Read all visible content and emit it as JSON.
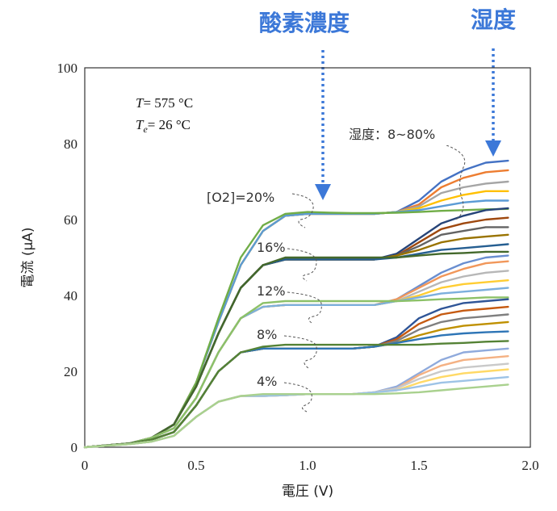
{
  "chart_data": {
    "type": "line",
    "xlabel": "電圧 (V)",
    "ylabel": "電流 (μA)",
    "xlim": [
      0,
      2.0
    ],
    "ylim": [
      0,
      100
    ],
    "xticks": [
      "0",
      "0.5",
      "1.0",
      "1.5",
      "2.0"
    ],
    "yticks": [
      "0",
      "20",
      "40",
      "60",
      "80",
      "100"
    ],
    "conditions": {
      "temp_var": "T",
      "temp_value": "= 575 °C",
      "te_var": "T",
      "te_sub": "e",
      "te_value": "= 26 °C"
    },
    "headers": {
      "oxygen": "酸素濃度",
      "humidity": "湿度"
    },
    "annotations": {
      "humidity_range": "湿度：8~80%",
      "o2_20": "[O2]=20%",
      "o2_16": "16%",
      "o2_12": "12%",
      "o2_8": "8%",
      "o2_4": "4%"
    },
    "x": [
      0,
      0.1,
      0.2,
      0.3,
      0.4,
      0.5,
      0.6,
      0.7,
      0.8,
      0.9,
      1.0,
      1.1,
      1.2,
      1.3,
      1.4,
      1.5,
      1.6,
      1.7,
      1.8,
      1.9
    ],
    "groups": [
      {
        "oxygen": "20%",
        "colors": [
          "#4472c4",
          "#ed7d31",
          "#a5a5a5",
          "#ffc000",
          "#5b9bd5",
          "#70ad47"
        ],
        "series": [
          {
            "values": [
              0,
              0.5,
              1,
              2.5,
              6,
              17,
              33,
              48,
              57,
              61,
              61.5,
              61.5,
              61.5,
              61.5,
              62,
              65,
              70,
              73,
              75,
              75.5
            ]
          },
          {
            "values": [
              0,
              0.5,
              1,
              2.5,
              6,
              17,
              33,
              48,
              57,
              61,
              61.5,
              61.5,
              61.5,
              61.5,
              62,
              64,
              68.5,
              71,
              72.5,
              73
            ]
          },
          {
            "values": [
              0,
              0.5,
              1,
              2.5,
              6,
              17,
              33,
              48,
              57,
              61,
              61.5,
              61.5,
              61.5,
              61.5,
              62,
              63.5,
              67,
              68.5,
              69.5,
              70
            ]
          },
          {
            "values": [
              0,
              0.5,
              1,
              2.5,
              6,
              17,
              33,
              48,
              57,
              61,
              61.5,
              61.5,
              61.5,
              61.5,
              62,
              63,
              65,
              66.5,
              67.5,
              67.5
            ]
          },
          {
            "values": [
              0,
              0.5,
              1,
              2.5,
              6,
              17,
              33,
              48,
              57,
              61,
              61.5,
              61.5,
              61.5,
              61.5,
              62,
              62.5,
              63.5,
              64.5,
              65,
              65
            ]
          },
          {
            "values": [
              0,
              0.5,
              1,
              2.5,
              6,
              17,
              34,
              50,
              58.5,
              61.5,
              62,
              61.8,
              61.7,
              61.7,
              61.8,
              62,
              62.3,
              62.5,
              62.7,
              62.8
            ]
          }
        ]
      },
      {
        "oxygen": "16%",
        "colors": [
          "#264478",
          "#9e480e",
          "#636363",
          "#997300",
          "#255e91",
          "#43682b"
        ],
        "series": [
          {
            "values": [
              0,
              0.5,
              1,
              2.5,
              6,
              16,
              30,
              42,
              48,
              49.5,
              49.5,
              49.5,
              49.5,
              49.5,
              51,
              55,
              59,
              61,
              62.5,
              63
            ]
          },
          {
            "values": [
              0,
              0.5,
              1,
              2.5,
              6,
              16,
              30,
              42,
              48,
              49.5,
              49.5,
              49.5,
              49.5,
              49.5,
              50.5,
              54,
              57.5,
              59,
              60,
              60.5
            ]
          },
          {
            "values": [
              0,
              0.5,
              1,
              2.5,
              6,
              16,
              30,
              42,
              48,
              49.5,
              49.5,
              49.5,
              49.5,
              49.5,
              50.5,
              53,
              56,
              57,
              58,
              58
            ]
          },
          {
            "values": [
              0,
              0.5,
              1,
              2.5,
              6,
              16,
              30,
              42,
              48,
              49.5,
              49.5,
              49.5,
              49.5,
              49.5,
              50.5,
              52,
              54,
              55,
              55.5,
              56
            ]
          },
          {
            "values": [
              0,
              0.5,
              1,
              2.5,
              6,
              16,
              30,
              42,
              48,
              49.5,
              49.5,
              49.5,
              49.5,
              49.5,
              50,
              51,
              52,
              52.5,
              53,
              53.5
            ]
          },
          {
            "values": [
              0,
              0.5,
              1,
              2.5,
              6,
              16,
              30,
              42,
              48,
              50,
              50,
              50,
              50,
              50,
              50,
              50.5,
              51,
              51.2,
              51.5,
              51.5
            ]
          }
        ]
      },
      {
        "oxygen": "12%",
        "colors": [
          "#698ed0",
          "#f1975a",
          "#b7b7b7",
          "#ffcd33",
          "#7cafdd",
          "#8cc168"
        ],
        "series": [
          {
            "values": [
              0,
              0.5,
              1,
              2.5,
              5,
              13,
              25,
              34,
              37,
              37.5,
              37.5,
              37.5,
              37.5,
              37.5,
              39,
              42.5,
              46,
              48.5,
              50,
              50.5
            ]
          },
          {
            "values": [
              0,
              0.5,
              1,
              2.5,
              5,
              13,
              25,
              34,
              37,
              37.5,
              37.5,
              37.5,
              37.5,
              37.5,
              39,
              42,
              45,
              47,
              48.5,
              49
            ]
          },
          {
            "values": [
              0,
              0.5,
              1,
              2.5,
              5,
              13,
              25,
              34,
              37,
              37.5,
              37.5,
              37.5,
              37.5,
              37.5,
              38.5,
              41,
              43.5,
              45,
              46,
              46.5
            ]
          },
          {
            "values": [
              0,
              0.5,
              1,
              2.5,
              5,
              13,
              25,
              34,
              37,
              37.5,
              37.5,
              37.5,
              37.5,
              37.5,
              38.5,
              40,
              42,
              43,
              43.5,
              44
            ]
          },
          {
            "values": [
              0,
              0.5,
              1,
              2.5,
              5,
              13,
              25,
              34,
              37,
              37.5,
              37.5,
              37.5,
              37.5,
              37.5,
              38.5,
              39.5,
              40.5,
              41,
              41.5,
              42
            ]
          },
          {
            "values": [
              0,
              0.5,
              1,
              2.5,
              5,
              13,
              25,
              34,
              38,
              38.5,
              38.5,
              38.5,
              38.5,
              38.5,
              38.5,
              38.7,
              39,
              39.2,
              39.5,
              39.5
            ]
          }
        ]
      },
      {
        "oxygen": "8%",
        "colors": [
          "#2f5597",
          "#c55a11",
          "#7f7f7f",
          "#bf9000",
          "#2e75b6",
          "#548235"
        ],
        "series": [
          {
            "values": [
              0,
              0.5,
              1,
              2,
              4,
              11,
              20,
              25,
              26,
              26,
              26,
              26,
              26,
              26.5,
              29,
              34,
              36.5,
              38,
              38.5,
              39
            ]
          },
          {
            "values": [
              0,
              0.5,
              1,
              2,
              4,
              11,
              20,
              25,
              26,
              26,
              26,
              26,
              26,
              26.5,
              28.5,
              32.5,
              35,
              36,
              36.5,
              37
            ]
          },
          {
            "values": [
              0,
              0.5,
              1,
              2,
              4,
              11,
              20,
              25,
              26,
              26,
              26,
              26,
              26,
              26.5,
              28,
              31,
              33,
              34,
              34.5,
              35
            ]
          },
          {
            "values": [
              0,
              0.5,
              1,
              2,
              4,
              11,
              20,
              25,
              26,
              26,
              26,
              26,
              26,
              26.5,
              27.5,
              29.5,
              31,
              32,
              32.5,
              33
            ]
          },
          {
            "values": [
              0,
              0.5,
              1,
              2,
              4,
              11,
              20,
              25,
              26,
              26,
              26,
              26,
              26,
              26.5,
              27.5,
              28.5,
              29.5,
              30,
              30.3,
              30.5
            ]
          },
          {
            "values": [
              0,
              0.5,
              1,
              2,
              4,
              11,
              20,
              25,
              26.5,
              27,
              27,
              27,
              27,
              27,
              27,
              27,
              27.3,
              27.5,
              27.8,
              28
            ]
          }
        ]
      },
      {
        "oxygen": "4%",
        "colors": [
          "#8faadc",
          "#f4b183",
          "#c9c9c9",
          "#ffd966",
          "#9dc3e6",
          "#a9d18e"
        ],
        "series": [
          {
            "values": [
              0,
              0.4,
              0.8,
              1.5,
              3,
              8,
              12,
              13.5,
              13.5,
              13.7,
              14,
              14,
              14,
              14.5,
              16,
              19.5,
              23,
              25,
              25.5,
              26
            ]
          },
          {
            "values": [
              0,
              0.4,
              0.8,
              1.5,
              3,
              8,
              12,
              13.5,
              13.5,
              13.7,
              14,
              14,
              14,
              14.5,
              15.5,
              19,
              21.5,
              23,
              23.5,
              24
            ]
          },
          {
            "values": [
              0,
              0.4,
              0.8,
              1.5,
              3,
              8,
              12,
              13.5,
              13.5,
              13.7,
              14,
              14,
              14,
              14.5,
              15.5,
              18,
              20,
              21,
              21.5,
              22
            ]
          },
          {
            "values": [
              0,
              0.4,
              0.8,
              1.5,
              3,
              8,
              12,
              13.5,
              13.5,
              13.7,
              14,
              14,
              14,
              14.5,
              15,
              17,
              18.5,
              19.5,
              20,
              20.5
            ]
          },
          {
            "values": [
              0,
              0.4,
              0.8,
              1.5,
              3,
              8,
              12,
              13.5,
              13.5,
              13.7,
              14,
              14,
              14,
              14.5,
              15,
              16,
              17,
              17.5,
              18,
              18.5
            ]
          },
          {
            "values": [
              0,
              0.4,
              0.8,
              1.5,
              3,
              8,
              12,
              13.5,
              14,
              14,
              14,
              14,
              14,
              14,
              14.2,
              14.5,
              15,
              15.5,
              16,
              16.5
            ]
          }
        ]
      }
    ]
  }
}
